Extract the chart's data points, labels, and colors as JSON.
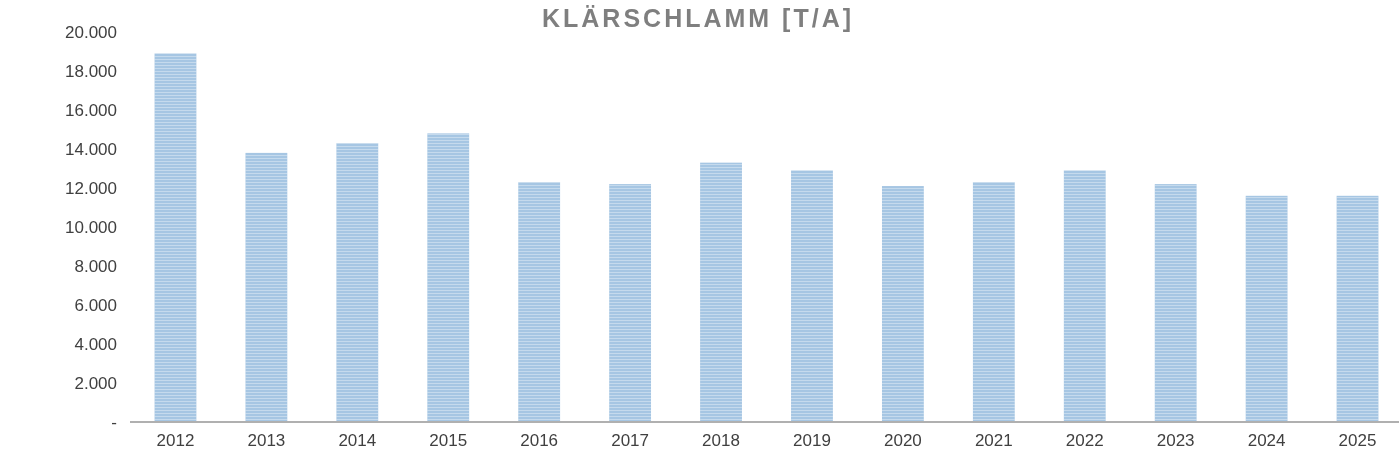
{
  "chart_data": {
    "type": "bar",
    "title": "KLÄRSCHLAMM [T/A]",
    "categories": [
      "2012",
      "2013",
      "2014",
      "2015",
      "2016",
      "2017",
      "2018",
      "2019",
      "2020",
      "2021",
      "2022",
      "2023",
      "2024",
      "2025"
    ],
    "values": [
      18900,
      13800,
      14300,
      14800,
      12300,
      12200,
      13300,
      12900,
      12100,
      12300,
      12900,
      12200,
      11600,
      11600
    ],
    "color": "#a6c6e3",
    "ylim": [
      0,
      20000
    ],
    "yticks": [
      {
        "value": 0,
        "label": "-"
      },
      {
        "value": 2000,
        "label": "2.000"
      },
      {
        "value": 4000,
        "label": "4.000"
      },
      {
        "value": 6000,
        "label": "6.000"
      },
      {
        "value": 8000,
        "label": "8.000"
      },
      {
        "value": 10000,
        "label": "10.000"
      },
      {
        "value": 12000,
        "label": "12.000"
      },
      {
        "value": 14000,
        "label": "14.000"
      },
      {
        "value": 16000,
        "label": "16.000"
      },
      {
        "value": 18000,
        "label": "18.000"
      },
      {
        "value": 20000,
        "label": "20.000"
      }
    ],
    "grid": false
  }
}
